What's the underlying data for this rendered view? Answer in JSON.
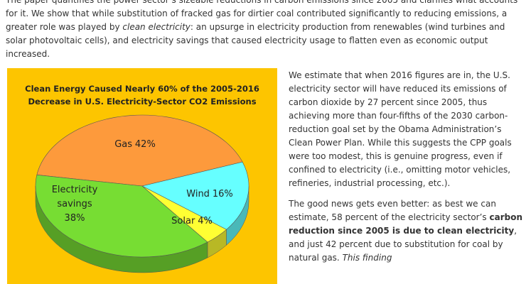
{
  "intro": [
    "The paper quantifies the power sector’s sizeable reductions in carbon emissions since 2005 and clarifies what accounts for it. We show that while substitution of fracked gas for dirtier coal contributed significantly to reducing emissions, a greater role was played by ",
    "clean electricity",
    ": an upsurge in electricity production from renewables (wind turbines and solar photovoltaic cells), and electricity savings that caused electricity usage to flatten even as economic output increased."
  ],
  "chart_data": {
    "type": "pie",
    "title": [
      "Clean Energy Caused Nearly 60% of the 2005-2016",
      "Decrease in U.S. Electricity-Sector CO2 Emissions"
    ],
    "categories": [
      "Gas",
      "Wind",
      "Solar",
      "Electricity savings"
    ],
    "values": [
      42,
      16,
      4,
      38
    ],
    "value_labels": [
      "42%",
      "16%",
      "4%",
      "38%"
    ],
    "colors": [
      "#fd9a3c",
      "#66ffff",
      "#ffff33",
      "#77dd33"
    ]
  },
  "side": {
    "paragraphs": [
      [
        "We estimate that when 2016 figures are in, the U.S. electricity sector will have reduced its emissions of carbon dioxide by 27 percent since 2005, thus achieving more than four-fifths of the 2030 carbon-reduction goal set by the Obama Administration’s Clean Power Plan. While this suggests the CPP goals were too modest, this is genuine progress, even if confined to electricity (i.e., omitting motor vehicles, refineries, industrial processing, etc.)."
      ],
      [
        "The good news gets even better: as best we can estimate, 58 percent of the electricity sector’s ",
        "carbon reduction since 2005 is due to clean electricity",
        ", and just 42 percent due to substitution for coal by natural gas. ",
        "This finding"
      ]
    ]
  }
}
